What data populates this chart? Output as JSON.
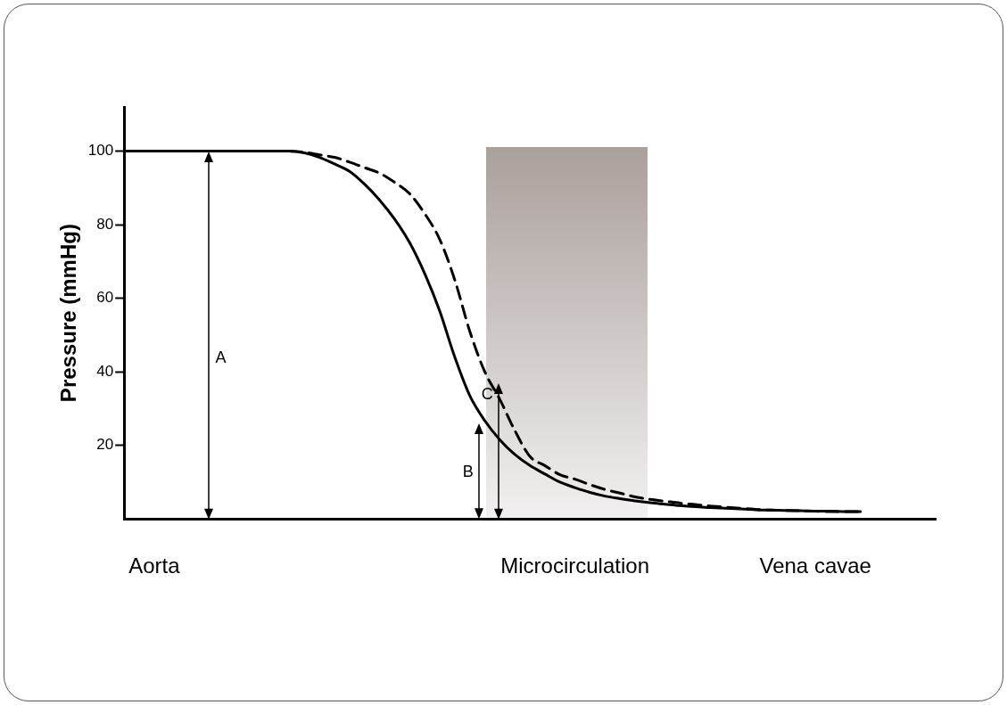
{
  "chart_data": {
    "type": "line",
    "ylabel": "Pressure (mmHg)",
    "categories": [
      null,
      null,
      "Aorta",
      null,
      null,
      null,
      null,
      null,
      null,
      null,
      null,
      null,
      null,
      null,
      null,
      null,
      null,
      null,
      null,
      null,
      null,
      null,
      null,
      null,
      null,
      null,
      null,
      null,
      null,
      null,
      "Microcirculation",
      null,
      null,
      null,
      null,
      null,
      null,
      null,
      null,
      null,
      null,
      null,
      null,
      null,
      null,
      null,
      "Vena cavae",
      null,
      null,
      null,
      null,
      null,
      null,
      null,
      null
    ],
    "ylim": [
      0,
      112
    ],
    "yticks": [
      20,
      40,
      60,
      80,
      100
    ],
    "series": [
      {
        "color": "#000000",
        "line_style": "solid",
        "values": [
          100,
          100,
          100,
          100,
          100,
          100,
          100,
          100,
          100,
          100,
          100,
          100,
          99.5,
          98.3,
          96.5,
          94.5,
          91,
          86.7,
          81.5,
          75.1,
          66.7,
          56.5,
          44,
          33.5,
          26.7,
          21.5,
          17.5,
          14.5,
          12.2,
          10,
          8.5,
          7.2,
          6.2,
          5.5,
          4.9,
          4.4,
          4,
          3.6,
          3.3,
          3.1,
          2.9,
          2.7,
          2.5,
          2.4,
          2.3,
          2.2,
          2.1,
          2.1,
          2,
          2,
          null,
          null,
          null,
          null,
          null
        ]
      },
      {
        "color": "#000000",
        "line_style": "dashed",
        "values": [
          null,
          null,
          null,
          null,
          null,
          null,
          null,
          null,
          null,
          null,
          null,
          100,
          99.7,
          99,
          98.3,
          97,
          95.5,
          94,
          91.5,
          88.4,
          83,
          76,
          65,
          51,
          40,
          32.5,
          24,
          17,
          14.5,
          12,
          10.8,
          9.3,
          8,
          7,
          6,
          5.3,
          4.8,
          4.3,
          3.9,
          3.5,
          3.2,
          2.9,
          2.6,
          2.4,
          2.3,
          2.2,
          2.1,
          2,
          2,
          2,
          null,
          null,
          null,
          null,
          null
        ]
      }
    ],
    "annotations": [
      "A",
      "B",
      "C"
    ],
    "grid": false,
    "legend": false,
    "marker": "none"
  }
}
